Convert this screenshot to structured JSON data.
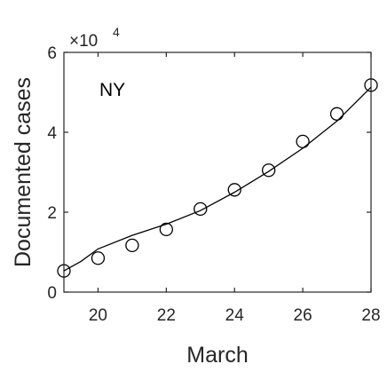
{
  "chart_data": {
    "type": "scatter",
    "xlabel": "March",
    "ylabel": "Documented cases",
    "annotation": "NY",
    "y_multiplier": {
      "base": "×10",
      "exponent": "4"
    },
    "xlim": [
      19,
      28
    ],
    "ylim": [
      0,
      60000
    ],
    "x_ticks": [
      20,
      22,
      24,
      26,
      28
    ],
    "x_tick_labels": [
      "20",
      "22",
      "24",
      "26",
      "28"
    ],
    "y_ticks": [
      0,
      20000,
      40000,
      60000
    ],
    "y_tick_labels": [
      "0",
      "2",
      "4",
      "6"
    ],
    "grid": false,
    "series": [
      {
        "kind": "markers",
        "marker": "circle",
        "x": [
          19,
          20,
          21,
          22,
          23,
          24,
          25,
          26,
          27,
          28
        ],
        "y": [
          5300,
          8500,
          11700,
          15700,
          20800,
          25600,
          30500,
          37700,
          44600,
          51800
        ]
      },
      {
        "kind": "line",
        "x": [
          19,
          19.5,
          20,
          21,
          22,
          23,
          24,
          25,
          26,
          27,
          28
        ],
        "y": [
          5300,
          7700,
          10800,
          14200,
          17000,
          20400,
          25000,
          30200,
          36000,
          42800,
          51300
        ]
      }
    ],
    "colors": {
      "marker": "#000000",
      "line": "#000000",
      "axis": "#262626"
    }
  }
}
